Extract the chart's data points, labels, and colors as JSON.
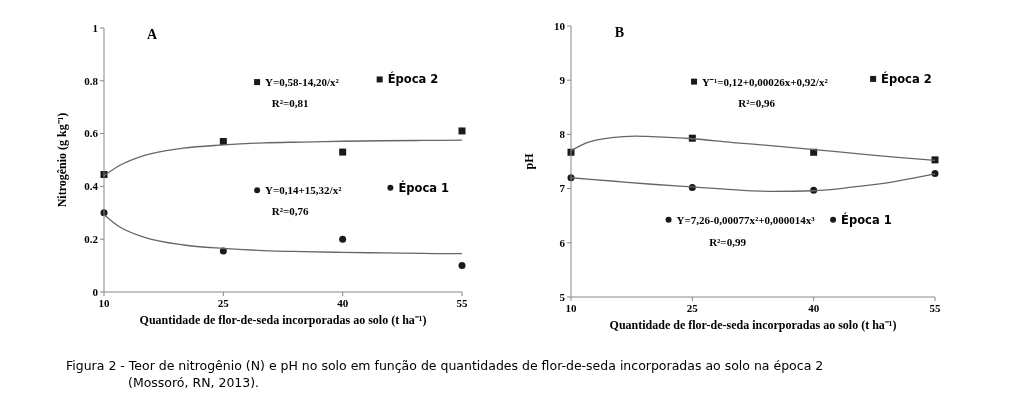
{
  "chart_data": [
    {
      "type": "scatter",
      "xlabel": "Quantidade de flor-de-seda incorporadas ao solo (t ha⁻¹)",
      "ylabel": "Nitrogênio (g kg⁻¹)",
      "xlim": [
        10,
        55
      ],
      "xticks": [
        10,
        25,
        40,
        55
      ],
      "ylim": [
        0,
        1
      ],
      "yticks": [
        0,
        0.2,
        0.4,
        0.6,
        0.8,
        1
      ],
      "grid": false,
      "legend": "right",
      "annotations": [
        "A",
        "Y=0,58-14,20/x²",
        "R²=0,81",
        "Y=0,14+15,32/x²",
        "R²=0,76",
        "Figura 2 - Teor de nitrogênio (N) e pH no solo em função de quantidades de flor-de-seda incorporadas ao solo na época 2 (Mossoró, RN, 2013)."
      ],
      "series": [
        {
          "name": "Época 2",
          "color": "#1a1a1a",
          "marker": "square",
          "x": [
            10,
            25,
            40,
            55
          ],
          "values": [
            0.445,
            0.57,
            0.53,
            0.61
          ]
        },
        {
          "name": "Época 1",
          "color": "#1a1a1a",
          "marker": "circle",
          "x": [
            10,
            25,
            40,
            55
          ],
          "values": [
            0.3,
            0.155,
            0.2,
            0.1
          ]
        },
        {
          "type": "line",
          "color": "#666666",
          "marker": "none",
          "x": [
            10,
            12,
            15,
            20,
            25,
            30,
            35,
            40,
            45,
            50,
            55
          ],
          "values": [
            0.44,
            0.48,
            0.517,
            0.545,
            0.557,
            0.565,
            0.568,
            0.571,
            0.573,
            0.574,
            0.575
          ]
        },
        {
          "type": "line",
          "color": "#666666",
          "marker": "none",
          "x": [
            10,
            12,
            15,
            20,
            25,
            30,
            35,
            40,
            45,
            50,
            55
          ],
          "values": [
            0.293,
            0.246,
            0.208,
            0.178,
            0.165,
            0.157,
            0.153,
            0.15,
            0.148,
            0.146,
            0.145
          ]
        }
      ]
    },
    {
      "type": "scatter",
      "xlabel": "Quantidade de flor-de-seda incorporadas ao solo (t ha⁻¹)",
      "ylabel": "pH",
      "xlim": [
        10,
        55
      ],
      "xticks": [
        10,
        25,
        40,
        55
      ],
      "ylim": [
        5,
        10
      ],
      "yticks": [
        5,
        6,
        7,
        8,
        9,
        10
      ],
      "grid": false,
      "legend": "right",
      "annotations": [
        "B",
        "Y⁻¹=0,12+0,00026x+0,92/x²",
        "R²=0,96",
        "Y=7,26-0,00077x²+0,000014x³",
        "R²=0,99"
      ],
      "series": [
        {
          "name": "Época 2",
          "color": "#1a1a1a",
          "marker": "square",
          "x": [
            10,
            25,
            40,
            55
          ],
          "values": [
            7.67,
            7.93,
            7.67,
            7.53
          ]
        },
        {
          "name": "Época 1",
          "color": "#1a1a1a",
          "marker": "circle",
          "x": [
            10,
            25,
            40,
            55
          ],
          "values": [
            7.2,
            7.02,
            6.97,
            7.28
          ]
        },
        {
          "type": "line",
          "color": "#666666",
          "marker": "none",
          "x": [
            10,
            12,
            15,
            18,
            20,
            25,
            30,
            35,
            40,
            45,
            50,
            55
          ],
          "values": [
            7.7,
            7.85,
            7.94,
            7.97,
            7.96,
            7.92,
            7.85,
            7.79,
            7.72,
            7.65,
            7.58,
            7.52
          ]
        },
        {
          "type": "line",
          "color": "#666666",
          "marker": "none",
          "x": [
            10,
            15,
            20,
            25,
            30,
            35,
            40,
            45,
            50,
            55
          ],
          "values": [
            7.2,
            7.14,
            7.08,
            7.03,
            6.98,
            6.95,
            6.96,
            7.03,
            7.13,
            7.27
          ]
        }
      ]
    }
  ]
}
